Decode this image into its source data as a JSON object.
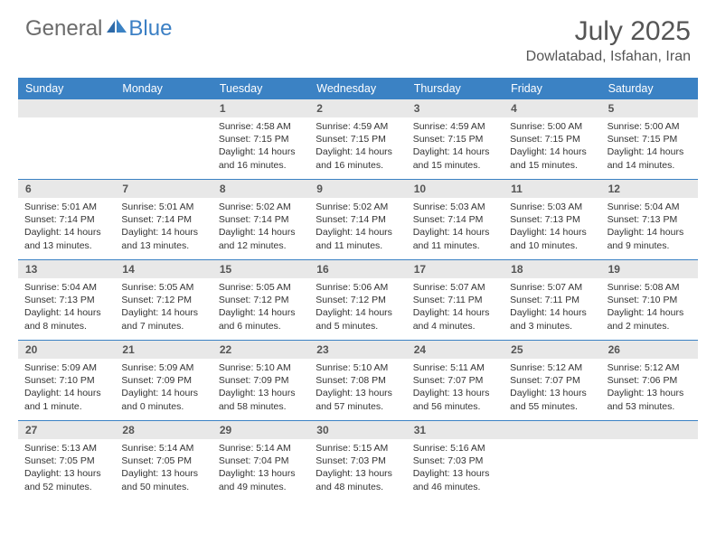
{
  "logo": {
    "part1": "General",
    "part2": "Blue"
  },
  "title": "July 2025",
  "location": "Dowlatabad, Isfahan, Iran",
  "colors": {
    "header_bg": "#3b82c4",
    "header_text": "#ffffff",
    "daynum_bg": "#e8e8e8",
    "text": "#333333",
    "logo_gray": "#6b6b6b",
    "logo_blue": "#3b7fc4"
  },
  "day_names": [
    "Sunday",
    "Monday",
    "Tuesday",
    "Wednesday",
    "Thursday",
    "Friday",
    "Saturday"
  ],
  "weeks": [
    [
      {
        "n": "",
        "sunrise": "",
        "sunset": "",
        "daylight": ""
      },
      {
        "n": "",
        "sunrise": "",
        "sunset": "",
        "daylight": ""
      },
      {
        "n": "1",
        "sunrise": "Sunrise: 4:58 AM",
        "sunset": "Sunset: 7:15 PM",
        "daylight": "Daylight: 14 hours and 16 minutes."
      },
      {
        "n": "2",
        "sunrise": "Sunrise: 4:59 AM",
        "sunset": "Sunset: 7:15 PM",
        "daylight": "Daylight: 14 hours and 16 minutes."
      },
      {
        "n": "3",
        "sunrise": "Sunrise: 4:59 AM",
        "sunset": "Sunset: 7:15 PM",
        "daylight": "Daylight: 14 hours and 15 minutes."
      },
      {
        "n": "4",
        "sunrise": "Sunrise: 5:00 AM",
        "sunset": "Sunset: 7:15 PM",
        "daylight": "Daylight: 14 hours and 15 minutes."
      },
      {
        "n": "5",
        "sunrise": "Sunrise: 5:00 AM",
        "sunset": "Sunset: 7:15 PM",
        "daylight": "Daylight: 14 hours and 14 minutes."
      }
    ],
    [
      {
        "n": "6",
        "sunrise": "Sunrise: 5:01 AM",
        "sunset": "Sunset: 7:14 PM",
        "daylight": "Daylight: 14 hours and 13 minutes."
      },
      {
        "n": "7",
        "sunrise": "Sunrise: 5:01 AM",
        "sunset": "Sunset: 7:14 PM",
        "daylight": "Daylight: 14 hours and 13 minutes."
      },
      {
        "n": "8",
        "sunrise": "Sunrise: 5:02 AM",
        "sunset": "Sunset: 7:14 PM",
        "daylight": "Daylight: 14 hours and 12 minutes."
      },
      {
        "n": "9",
        "sunrise": "Sunrise: 5:02 AM",
        "sunset": "Sunset: 7:14 PM",
        "daylight": "Daylight: 14 hours and 11 minutes."
      },
      {
        "n": "10",
        "sunrise": "Sunrise: 5:03 AM",
        "sunset": "Sunset: 7:14 PM",
        "daylight": "Daylight: 14 hours and 11 minutes."
      },
      {
        "n": "11",
        "sunrise": "Sunrise: 5:03 AM",
        "sunset": "Sunset: 7:13 PM",
        "daylight": "Daylight: 14 hours and 10 minutes."
      },
      {
        "n": "12",
        "sunrise": "Sunrise: 5:04 AM",
        "sunset": "Sunset: 7:13 PM",
        "daylight": "Daylight: 14 hours and 9 minutes."
      }
    ],
    [
      {
        "n": "13",
        "sunrise": "Sunrise: 5:04 AM",
        "sunset": "Sunset: 7:13 PM",
        "daylight": "Daylight: 14 hours and 8 minutes."
      },
      {
        "n": "14",
        "sunrise": "Sunrise: 5:05 AM",
        "sunset": "Sunset: 7:12 PM",
        "daylight": "Daylight: 14 hours and 7 minutes."
      },
      {
        "n": "15",
        "sunrise": "Sunrise: 5:05 AM",
        "sunset": "Sunset: 7:12 PM",
        "daylight": "Daylight: 14 hours and 6 minutes."
      },
      {
        "n": "16",
        "sunrise": "Sunrise: 5:06 AM",
        "sunset": "Sunset: 7:12 PM",
        "daylight": "Daylight: 14 hours and 5 minutes."
      },
      {
        "n": "17",
        "sunrise": "Sunrise: 5:07 AM",
        "sunset": "Sunset: 7:11 PM",
        "daylight": "Daylight: 14 hours and 4 minutes."
      },
      {
        "n": "18",
        "sunrise": "Sunrise: 5:07 AM",
        "sunset": "Sunset: 7:11 PM",
        "daylight": "Daylight: 14 hours and 3 minutes."
      },
      {
        "n": "19",
        "sunrise": "Sunrise: 5:08 AM",
        "sunset": "Sunset: 7:10 PM",
        "daylight": "Daylight: 14 hours and 2 minutes."
      }
    ],
    [
      {
        "n": "20",
        "sunrise": "Sunrise: 5:09 AM",
        "sunset": "Sunset: 7:10 PM",
        "daylight": "Daylight: 14 hours and 1 minute."
      },
      {
        "n": "21",
        "sunrise": "Sunrise: 5:09 AM",
        "sunset": "Sunset: 7:09 PM",
        "daylight": "Daylight: 14 hours and 0 minutes."
      },
      {
        "n": "22",
        "sunrise": "Sunrise: 5:10 AM",
        "sunset": "Sunset: 7:09 PM",
        "daylight": "Daylight: 13 hours and 58 minutes."
      },
      {
        "n": "23",
        "sunrise": "Sunrise: 5:10 AM",
        "sunset": "Sunset: 7:08 PM",
        "daylight": "Daylight: 13 hours and 57 minutes."
      },
      {
        "n": "24",
        "sunrise": "Sunrise: 5:11 AM",
        "sunset": "Sunset: 7:07 PM",
        "daylight": "Daylight: 13 hours and 56 minutes."
      },
      {
        "n": "25",
        "sunrise": "Sunrise: 5:12 AM",
        "sunset": "Sunset: 7:07 PM",
        "daylight": "Daylight: 13 hours and 55 minutes."
      },
      {
        "n": "26",
        "sunrise": "Sunrise: 5:12 AM",
        "sunset": "Sunset: 7:06 PM",
        "daylight": "Daylight: 13 hours and 53 minutes."
      }
    ],
    [
      {
        "n": "27",
        "sunrise": "Sunrise: 5:13 AM",
        "sunset": "Sunset: 7:05 PM",
        "daylight": "Daylight: 13 hours and 52 minutes."
      },
      {
        "n": "28",
        "sunrise": "Sunrise: 5:14 AM",
        "sunset": "Sunset: 7:05 PM",
        "daylight": "Daylight: 13 hours and 50 minutes."
      },
      {
        "n": "29",
        "sunrise": "Sunrise: 5:14 AM",
        "sunset": "Sunset: 7:04 PM",
        "daylight": "Daylight: 13 hours and 49 minutes."
      },
      {
        "n": "30",
        "sunrise": "Sunrise: 5:15 AM",
        "sunset": "Sunset: 7:03 PM",
        "daylight": "Daylight: 13 hours and 48 minutes."
      },
      {
        "n": "31",
        "sunrise": "Sunrise: 5:16 AM",
        "sunset": "Sunset: 7:03 PM",
        "daylight": "Daylight: 13 hours and 46 minutes."
      },
      {
        "n": "",
        "sunrise": "",
        "sunset": "",
        "daylight": ""
      },
      {
        "n": "",
        "sunrise": "",
        "sunset": "",
        "daylight": ""
      }
    ]
  ]
}
